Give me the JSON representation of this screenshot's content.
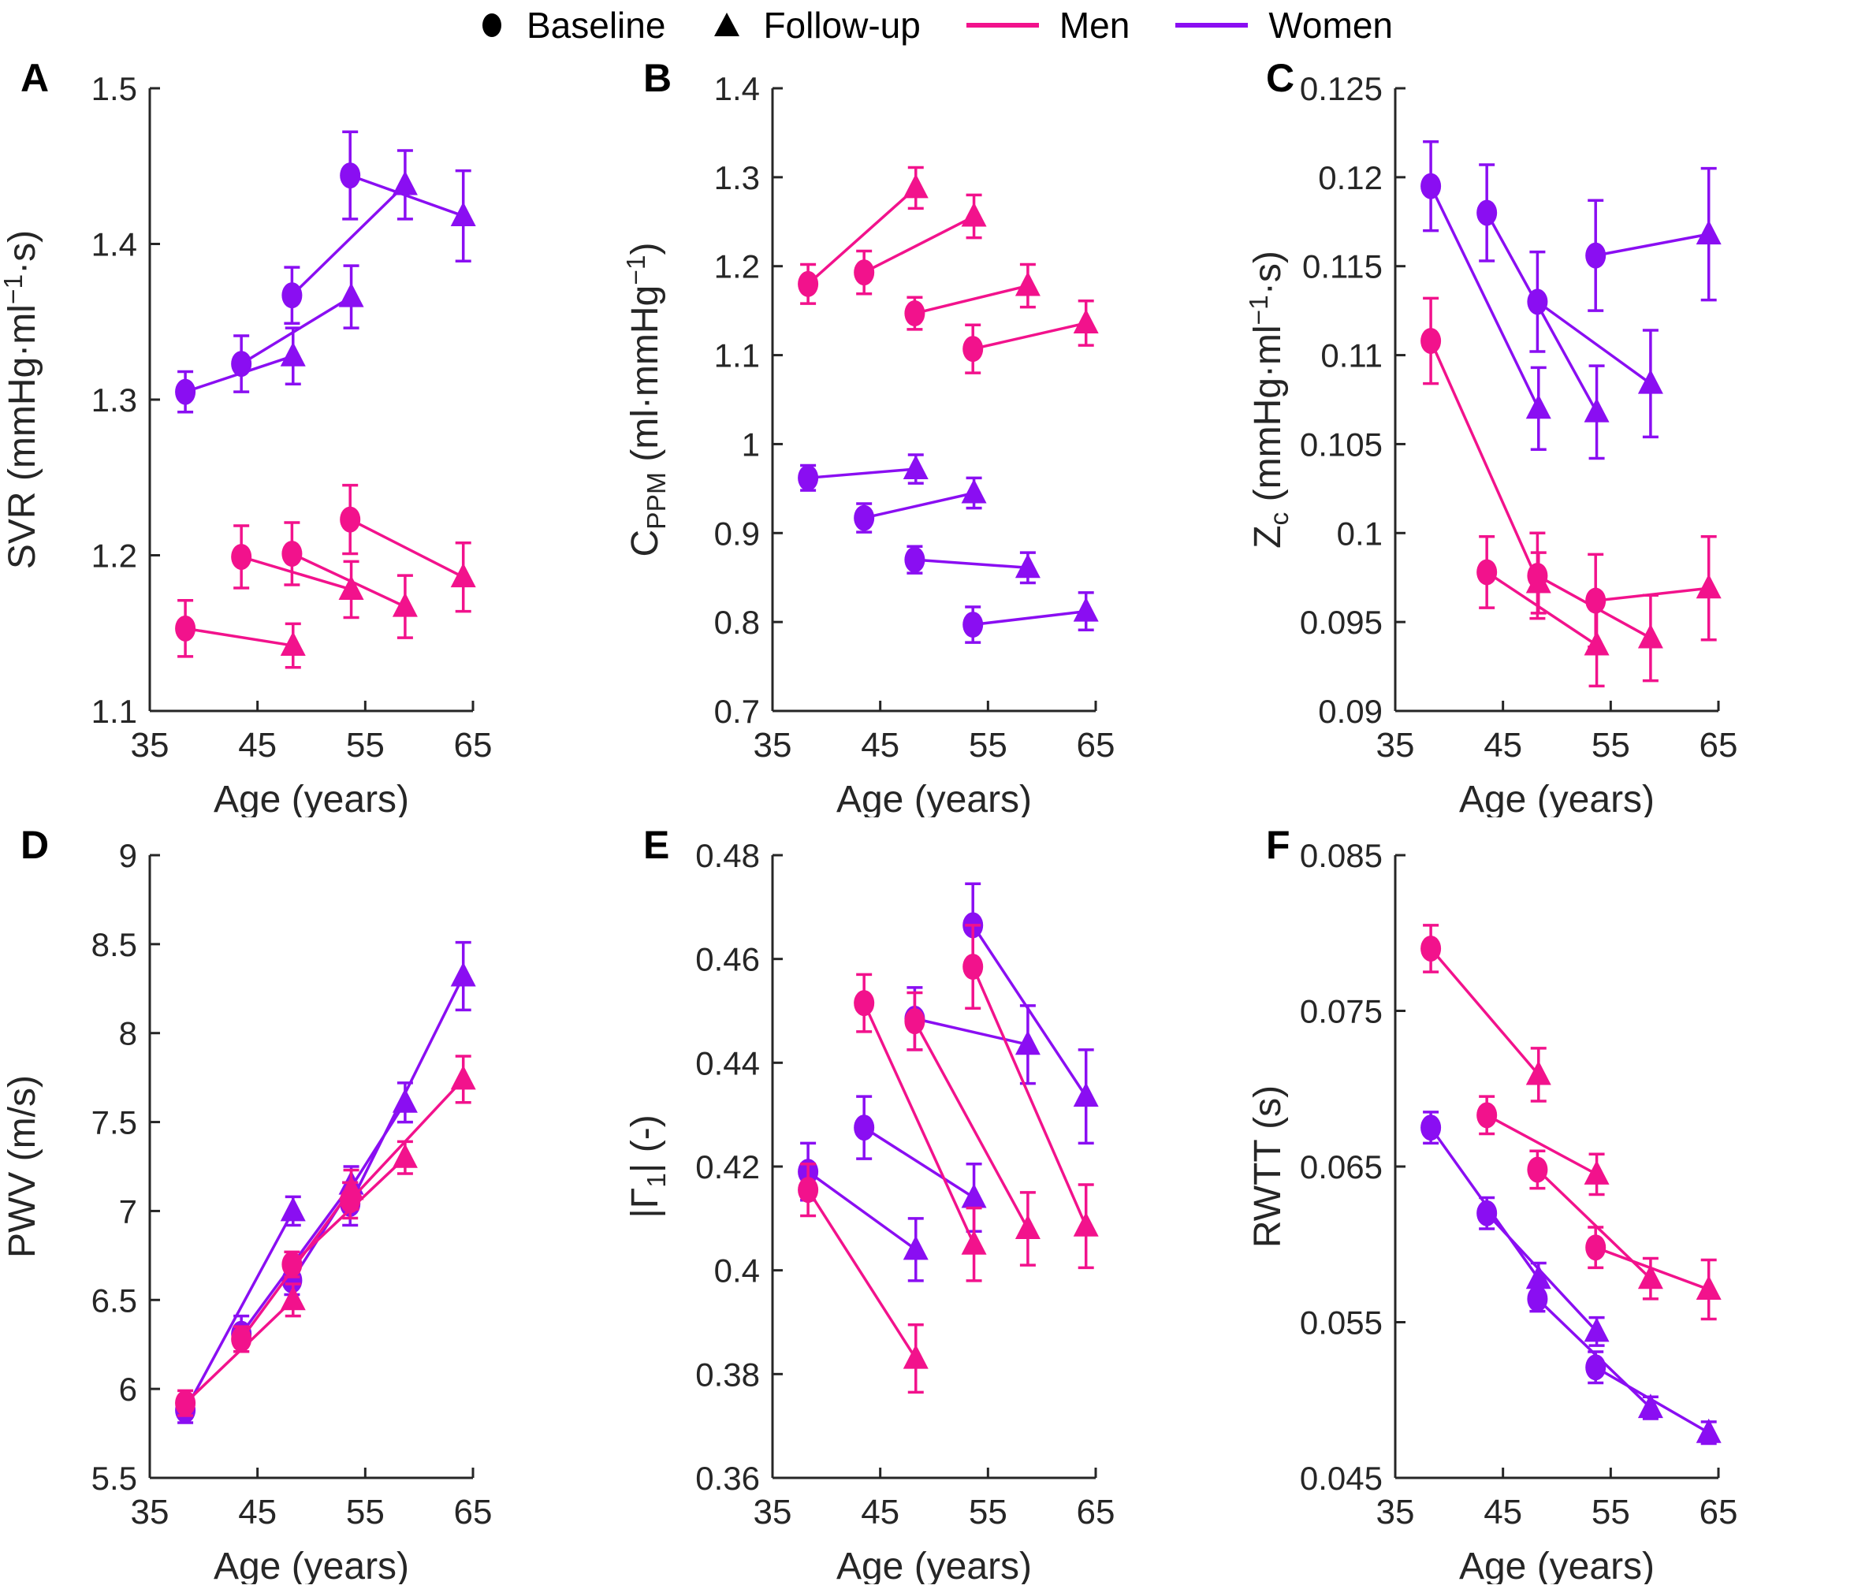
{
  "colors": {
    "men": "#F2128C",
    "women": "#8A0EF2",
    "axis": "#262626",
    "legend_marker": "#000000",
    "background": "#FFFFFF"
  },
  "legend": {
    "items": [
      {
        "label": "Baseline",
        "marker": "circle"
      },
      {
        "label": "Follow-up",
        "marker": "triangle"
      },
      {
        "label": "Men",
        "marker": "line",
        "color_key": "men"
      },
      {
        "label": "Women",
        "marker": "line",
        "color_key": "women"
      }
    ]
  },
  "x_axis": {
    "label": "Age (years)",
    "range": [
      35,
      65
    ],
    "ticks": [
      35,
      45,
      55,
      65
    ]
  },
  "chart_data": [
    {
      "panel": "A",
      "type": "line",
      "ylabel_text": "SVR (mmHg·ml−1·s)",
      "ylabel_parts": [
        [
          "SVR (mmHg·ml",
          "n"
        ],
        [
          "−1",
          "sup"
        ],
        [
          "·s)",
          "n"
        ]
      ],
      "ylim": [
        1.1,
        1.5
      ],
      "yticks": [
        1.1,
        1.2,
        1.3,
        1.4,
        1.5
      ],
      "ytick_labels": [
        "1.1",
        "1.2",
        "1.3",
        "1.4",
        "1.5"
      ],
      "series": [
        {
          "name": "Women",
          "color": "women",
          "baseline": {
            "x": [
              38.3,
              43.5,
              48.2,
              53.6
            ],
            "y": [
              1.305,
              1.323,
              1.367,
              1.444
            ],
            "err": [
              0.013,
              0.018,
              0.018,
              0.028
            ]
          },
          "followup": {
            "x": [
              48.3,
              53.7,
              58.7,
              64.1
            ],
            "y": [
              1.328,
              1.366,
              1.438,
              1.418
            ],
            "err": [
              0.018,
              0.02,
              0.022,
              0.029
            ]
          }
        },
        {
          "name": "Men",
          "color": "men",
          "baseline": {
            "x": [
              38.3,
              43.5,
              48.2,
              53.6
            ],
            "y": [
              1.153,
              1.199,
              1.201,
              1.223
            ],
            "err": [
              0.018,
              0.02,
              0.02,
              0.022
            ]
          },
          "followup": {
            "x": [
              48.3,
              53.7,
              58.7,
              64.1
            ],
            "y": [
              1.142,
              1.178,
              1.167,
              1.186
            ],
            "err": [
              0.014,
              0.018,
              0.02,
              0.022
            ]
          }
        }
      ]
    },
    {
      "panel": "B",
      "type": "line",
      "ylabel_text": "CPPM (ml·mmHg−1)",
      "ylabel_parts": [
        [
          "C",
          "n"
        ],
        [
          "PPM",
          "sub"
        ],
        [
          " (ml·mmHg",
          "n"
        ],
        [
          "−1",
          "sup"
        ],
        [
          ")",
          "n"
        ]
      ],
      "ylim": [
        0.7,
        1.4
      ],
      "yticks": [
        0.7,
        0.8,
        0.9,
        1,
        1.1,
        1.2,
        1.3,
        1.4
      ],
      "ytick_labels": [
        "0.7",
        "0.8",
        "0.9",
        "1",
        "1.1",
        "1.2",
        "1.3",
        "1.4"
      ],
      "series": [
        {
          "name": "Men",
          "color": "men",
          "baseline": {
            "x": [
              38.3,
              43.5,
              48.2,
              53.6
            ],
            "y": [
              1.18,
              1.193,
              1.147,
              1.107
            ],
            "err": [
              0.022,
              0.024,
              0.018,
              0.027
            ]
          },
          "followup": {
            "x": [
              48.3,
              53.7,
              58.7,
              64.1
            ],
            "y": [
              1.288,
              1.256,
              1.178,
              1.136
            ],
            "err": [
              0.023,
              0.024,
              0.024,
              0.025
            ]
          }
        },
        {
          "name": "Women",
          "color": "women",
          "baseline": {
            "x": [
              38.3,
              43.5,
              48.2,
              53.6
            ],
            "y": [
              0.962,
              0.917,
              0.87,
              0.797
            ],
            "err": [
              0.014,
              0.016,
              0.015,
              0.02
            ]
          },
          "followup": {
            "x": [
              48.3,
              53.7,
              58.7,
              64.1
            ],
            "y": [
              0.972,
              0.945,
              0.861,
              0.812
            ],
            "err": [
              0.016,
              0.017,
              0.017,
              0.021
            ]
          }
        }
      ]
    },
    {
      "panel": "C",
      "type": "line",
      "ylabel_text": "Zc (mmHg·ml−1·s)",
      "ylabel_parts": [
        [
          "Z",
          "n"
        ],
        [
          "c",
          "sub"
        ],
        [
          " (mmHg·ml",
          "n"
        ],
        [
          "−1",
          "sup"
        ],
        [
          "·s)",
          "n"
        ]
      ],
      "ylim": [
        0.09,
        0.125
      ],
      "yticks": [
        0.09,
        0.095,
        0.1,
        0.105,
        0.11,
        0.115,
        0.12,
        0.125
      ],
      "ytick_labels": [
        "0.09",
        "0.095",
        "0.1",
        "0.105",
        "0.11",
        "0.115",
        "0.12",
        "0.125"
      ],
      "series": [
        {
          "name": "Women",
          "color": "women",
          "baseline": {
            "x": [
              38.3,
              43.5,
              48.2,
              53.6
            ],
            "y": [
              0.1195,
              0.118,
              0.113,
              0.1156
            ],
            "err": [
              0.0025,
              0.0027,
              0.0028,
              0.0031
            ]
          },
          "followup": {
            "x": [
              48.3,
              53.7,
              58.7,
              64.1
            ],
            "y": [
              0.107,
              0.1068,
              0.1084,
              0.1168
            ],
            "err": [
              0.0023,
              0.0026,
              0.003,
              0.0037
            ]
          }
        },
        {
          "name": "Men",
          "color": "men",
          "baseline": {
            "x": [
              38.3,
              43.5,
              48.2,
              53.6
            ],
            "y": [
              0.1108,
              0.0978,
              0.0976,
              0.0962
            ],
            "err": [
              0.0024,
              0.002,
              0.0024,
              0.0026
            ]
          },
          "followup": {
            "x": [
              48.3,
              53.7,
              58.7,
              64.1
            ],
            "y": [
              0.0972,
              0.0937,
              0.0941,
              0.0969
            ],
            "err": [
              0.0017,
              0.0023,
              0.0024,
              0.0029
            ]
          }
        }
      ]
    },
    {
      "panel": "D",
      "type": "line",
      "ylabel_text": "PWV (m/s)",
      "ylabel_parts": [
        [
          "PWV (m/s)",
          "n"
        ]
      ],
      "ylim": [
        5.5,
        9
      ],
      "yticks": [
        5.5,
        6,
        6.5,
        7,
        7.5,
        8,
        8.5,
        9
      ],
      "ytick_labels": [
        "5.5",
        "6",
        "6.5",
        "7",
        "7.5",
        "8",
        "8.5",
        "9"
      ],
      "series": [
        {
          "name": "Women",
          "color": "women",
          "baseline": {
            "x": [
              38.3,
              43.5,
              48.2,
              53.6
            ],
            "y": [
              5.88,
              6.31,
              6.61,
              7.04
            ],
            "err": [
              0.07,
              0.1,
              0.08,
              0.12
            ]
          },
          "followup": {
            "x": [
              48.3,
              53.7,
              58.7,
              64.1
            ],
            "y": [
              7.0,
              7.15,
              7.61,
              8.32
            ],
            "err": [
              0.08,
              0.1,
              0.11,
              0.19
            ]
          }
        },
        {
          "name": "Men",
          "color": "men",
          "baseline": {
            "x": [
              38.3,
              43.5,
              48.2,
              53.6
            ],
            "y": [
              5.92,
              6.28,
              6.7,
              7.06
            ],
            "err": [
              0.07,
              0.07,
              0.07,
              0.1
            ]
          },
          "followup": {
            "x": [
              48.3,
              53.7,
              58.7,
              64.1
            ],
            "y": [
              6.5,
              7.12,
              7.3,
              7.74
            ],
            "err": [
              0.09,
              0.11,
              0.09,
              0.13
            ]
          }
        }
      ]
    },
    {
      "panel": "E",
      "type": "line",
      "ylabel_text": "|Γ1| (-)",
      "ylabel_parts": [
        [
          "|Γ",
          "n"
        ],
        [
          "1",
          "sub"
        ],
        [
          "| (-)",
          "n"
        ]
      ],
      "ylim": [
        0.36,
        0.48
      ],
      "yticks": [
        0.36,
        0.38,
        0.4,
        0.42,
        0.44,
        0.46,
        0.48
      ],
      "ytick_labels": [
        "0.36",
        "0.38",
        "0.4",
        "0.42",
        "0.44",
        "0.46",
        "0.48"
      ],
      "series": [
        {
          "name": "Women",
          "color": "women",
          "baseline": {
            "x": [
              38.3,
              43.5,
              48.2,
              53.6
            ],
            "y": [
              0.419,
              0.4275,
              0.4485,
              0.4665
            ],
            "err": [
              0.0055,
              0.006,
              0.006,
              0.008
            ]
          },
          "followup": {
            "x": [
              48.3,
              53.7,
              58.7,
              64.1
            ],
            "y": [
              0.404,
              0.414,
              0.4435,
              0.4335
            ],
            "err": [
              0.006,
              0.0065,
              0.0075,
              0.009
            ]
          }
        },
        {
          "name": "Men",
          "color": "men",
          "baseline": {
            "x": [
              38.3,
              43.5,
              48.2,
              53.6
            ],
            "y": [
              0.4155,
              0.4515,
              0.448,
              0.4585
            ],
            "err": [
              0.005,
              0.0055,
              0.0055,
              0.008
            ]
          },
          "followup": {
            "x": [
              48.3,
              53.7,
              58.7,
              64.1
            ],
            "y": [
              0.383,
              0.405,
              0.408,
              0.4085
            ],
            "err": [
              0.0065,
              0.007,
              0.007,
              0.008
            ]
          }
        }
      ]
    },
    {
      "panel": "F",
      "type": "line",
      "ylabel_text": "RWTT (s)",
      "ylabel_parts": [
        [
          "RWTT (s)",
          "n"
        ]
      ],
      "ylim": [
        0.045,
        0.085
      ],
      "yticks": [
        0.045,
        0.055,
        0.065,
        0.075,
        0.085
      ],
      "ytick_labels": [
        "0.045",
        "0.055",
        "0.065",
        "0.075",
        "0.085"
      ],
      "series": [
        {
          "name": "Men",
          "color": "men",
          "baseline": {
            "x": [
              38.3,
              43.5,
              48.2,
              53.6
            ],
            "y": [
              0.079,
              0.0683,
              0.0648,
              0.0598
            ],
            "err": [
              0.0015,
              0.0012,
              0.0012,
              0.0013
            ]
          },
          "followup": {
            "x": [
              48.3,
              53.7,
              58.7,
              64.1
            ],
            "y": [
              0.0709,
              0.0645,
              0.0578,
              0.0571
            ],
            "err": [
              0.0017,
              0.0013,
              0.0013,
              0.0019
            ]
          }
        },
        {
          "name": "Women",
          "color": "women",
          "baseline": {
            "x": [
              38.3,
              43.5,
              48.2,
              53.6
            ],
            "y": [
              0.0675,
              0.062,
              0.0565,
              0.0521
            ],
            "err": [
              0.001,
              0.001,
              0.0008,
              0.001
            ]
          },
          "followup": {
            "x": [
              48.3,
              53.7,
              58.7,
              64.1
            ],
            "y": [
              0.0578,
              0.0544,
              0.0495,
              0.0479
            ],
            "err": [
              0.001,
              0.0009,
              0.0007,
              0.0007
            ]
          }
        }
      ]
    }
  ]
}
